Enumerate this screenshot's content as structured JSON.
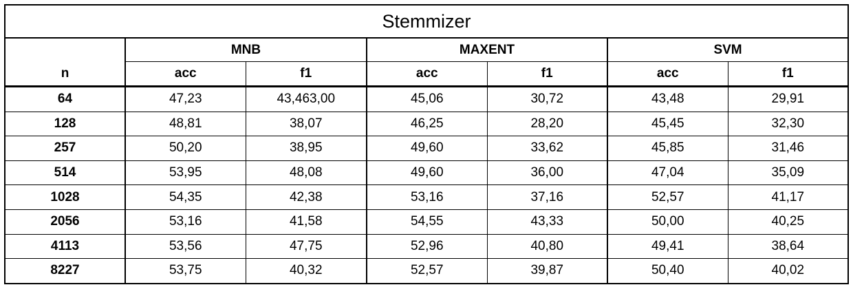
{
  "table": {
    "title": "Stemmizer",
    "n_header": "n",
    "groups": [
      {
        "name": "MNB",
        "cols": [
          "acc",
          "f1"
        ]
      },
      {
        "name": "MAXENT",
        "cols": [
          "acc",
          "f1"
        ]
      },
      {
        "name": "SVM",
        "cols": [
          "acc",
          "f1"
        ]
      }
    ],
    "rows": [
      {
        "n": "64",
        "values": [
          "47,23",
          "43,463,00",
          "45,06",
          "30,72",
          "43,48",
          "29,91"
        ]
      },
      {
        "n": "128",
        "values": [
          "48,81",
          "38,07",
          "46,25",
          "28,20",
          "45,45",
          "32,30"
        ]
      },
      {
        "n": "257",
        "values": [
          "50,20",
          "38,95",
          "49,60",
          "33,62",
          "45,85",
          "31,46"
        ]
      },
      {
        "n": "514",
        "values": [
          "53,95",
          "48,08",
          "49,60",
          "36,00",
          "47,04",
          "35,09"
        ]
      },
      {
        "n": "1028",
        "values": [
          "54,35",
          "42,38",
          "53,16",
          "37,16",
          "52,57",
          "41,17"
        ]
      },
      {
        "n": "2056",
        "values": [
          "53,16",
          "41,58",
          "54,55",
          "43,33",
          "50,00",
          "40,25"
        ]
      },
      {
        "n": "4113",
        "values": [
          "53,56",
          "47,75",
          "52,96",
          "40,80",
          "49,41",
          "38,64"
        ]
      },
      {
        "n": "8227",
        "values": [
          "53,75",
          "40,32",
          "52,57",
          "39,87",
          "50,40",
          "40,02"
        ]
      }
    ]
  }
}
